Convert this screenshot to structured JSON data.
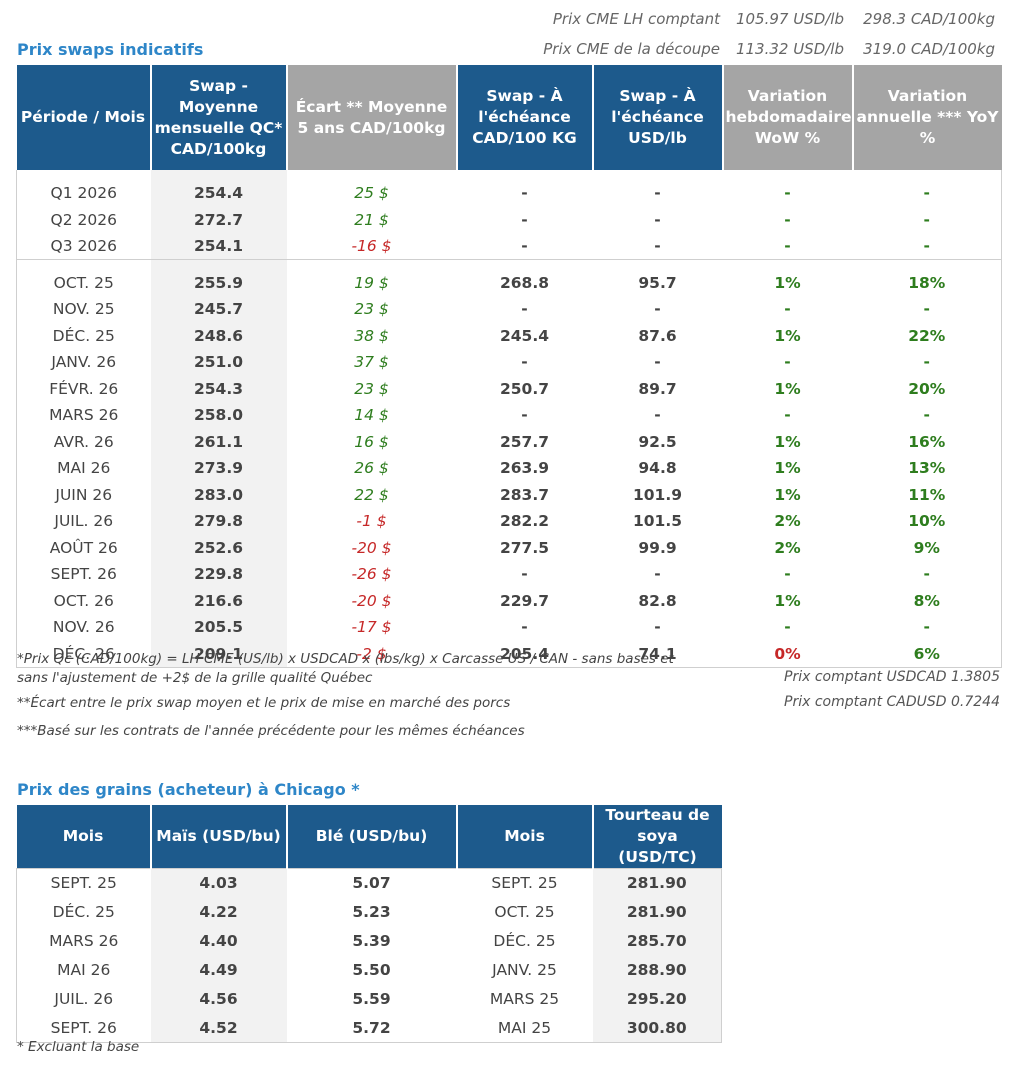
{
  "cme": {
    "lh": {
      "label": "Prix CME LH comptant",
      "usd": "105.97 USD/lb",
      "cad": "298.3 CAD/100kg"
    },
    "decoupe": {
      "label": "Prix CME de la découpe",
      "usd": "113.32 USD/lb",
      "cad": "319.0 CAD/100kg"
    }
  },
  "swaps": {
    "title": "Prix swaps indicatifs",
    "headers": [
      "Période / Mois",
      "Swap - Moyenne mensuelle QC* CAD/100kg",
      "Écart ** Moyenne 5 ans CAD/100kg",
      "Swap - À l'échéance CAD/100 KG",
      "Swap - À l'échéance USD/lb",
      "Variation hebdomadaire WoW %",
      "Variation annuelle *** YoY %"
    ],
    "quarters": [
      {
        "period": "Q1 2026",
        "swap": "254.4",
        "ecart": "25 $",
        "cad": "-",
        "usd": "-",
        "wow": "-",
        "yoy": "-"
      },
      {
        "period": "Q2 2026",
        "swap": "272.7",
        "ecart": "21 $",
        "cad": "-",
        "usd": "-",
        "wow": "-",
        "yoy": "-"
      },
      {
        "period": "Q3 2026",
        "swap": "254.1",
        "ecart": "-16 $",
        "cad": "-",
        "usd": "-",
        "wow": "-",
        "yoy": "-"
      }
    ],
    "months": [
      {
        "period": "OCT. 25",
        "swap": "255.9",
        "ecart": "19 $",
        "cad": "268.8",
        "usd": "95.7",
        "wow": "1%",
        "yoy": "18%"
      },
      {
        "period": "NOV. 25",
        "swap": "245.7",
        "ecart": "23 $",
        "cad": "-",
        "usd": "-",
        "wow": "-",
        "yoy": "-"
      },
      {
        "period": "DÉC. 25",
        "swap": "248.6",
        "ecart": "38 $",
        "cad": "245.4",
        "usd": "87.6",
        "wow": "1%",
        "yoy": "22%"
      },
      {
        "period": "JANV. 26",
        "swap": "251.0",
        "ecart": "37 $",
        "cad": "-",
        "usd": "-",
        "wow": "-",
        "yoy": "-"
      },
      {
        "period": "FÉVR. 26",
        "swap": "254.3",
        "ecart": "23 $",
        "cad": "250.7",
        "usd": "89.7",
        "wow": "1%",
        "yoy": "20%"
      },
      {
        "period": "MARS 26",
        "swap": "258.0",
        "ecart": "14 $",
        "cad": "-",
        "usd": "-",
        "wow": "-",
        "yoy": "-"
      },
      {
        "period": "AVR. 26",
        "swap": "261.1",
        "ecart": "16 $",
        "cad": "257.7",
        "usd": "92.5",
        "wow": "1%",
        "yoy": "16%"
      },
      {
        "period": "MAI 26",
        "swap": "273.9",
        "ecart": "26 $",
        "cad": "263.9",
        "usd": "94.8",
        "wow": "1%",
        "yoy": "13%"
      },
      {
        "period": "JUIN 26",
        "swap": "283.0",
        "ecart": "22 $",
        "cad": "283.7",
        "usd": "101.9",
        "wow": "1%",
        "yoy": "11%"
      },
      {
        "period": "JUIL. 26",
        "swap": "279.8",
        "ecart": "-1 $",
        "cad": "282.2",
        "usd": "101.5",
        "wow": "2%",
        "yoy": "10%"
      },
      {
        "period": "AOÛT 26",
        "swap": "252.6",
        "ecart": "-20 $",
        "cad": "277.5",
        "usd": "99.9",
        "wow": "2%",
        "yoy": "9%"
      },
      {
        "period": "SEPT. 26",
        "swap": "229.8",
        "ecart": "-26 $",
        "cad": "-",
        "usd": "-",
        "wow": "-",
        "yoy": "-"
      },
      {
        "period": "OCT. 26",
        "swap": "216.6",
        "ecart": "-20 $",
        "cad": "229.7",
        "usd": "82.8",
        "wow": "1%",
        "yoy": "8%"
      },
      {
        "period": "NOV. 26",
        "swap": "205.5",
        "ecart": "-17 $",
        "cad": "-",
        "usd": "-",
        "wow": "-",
        "yoy": "-"
      },
      {
        "period": "DÉC. 26",
        "swap": "209.1",
        "ecart": "-2 $",
        "cad": "205.4",
        "usd": "74.1",
        "wow": "0%",
        "yoy": "6%"
      }
    ]
  },
  "notes": {
    "n1a": "*Prix Qc (CAD/100kg) = LH CME (US/lb) x USDCAD x (lbs/kg) x Carcasse US / CAN - sans bases et",
    "n1b": "sans l'ajustement de +2$ de la grille qualité Québec",
    "n2": "**Écart entre le prix swap moyen et le prix de mise en marché des porcs",
    "n3": "***Basé sur les contrats de l'année précédente pour les mêmes échéances",
    "usdcad": "Prix comptant USDCAD 1.3805",
    "cadusd": "Prix comptant CADUSD 0.7244"
  },
  "grains": {
    "title": "Prix des grains (acheteur) à Chicago *",
    "headers": [
      "Mois",
      "Maïs (USD/bu)",
      "Blé (USD/bu)",
      "Mois",
      "Tourteau de soya (USD/TC)"
    ],
    "rows": [
      {
        "m1": "SEPT. 25",
        "mais": "4.03",
        "ble": "5.07",
        "m2": "SEPT. 25",
        "soya": "281.90"
      },
      {
        "m1": "DÉC. 25",
        "mais": "4.22",
        "ble": "5.23",
        "m2": "OCT. 25",
        "soya": "281.90"
      },
      {
        "m1": "MARS 26",
        "mais": "4.40",
        "ble": "5.39",
        "m2": "DÉC. 25",
        "soya": "285.70"
      },
      {
        "m1": "MAI 26",
        "mais": "4.49",
        "ble": "5.50",
        "m2": "JANV. 25",
        "soya": "288.90"
      },
      {
        "m1": "JUIL. 26",
        "mais": "4.56",
        "ble": "5.59",
        "m2": "MARS 25",
        "soya": "295.20"
      },
      {
        "m1": "SEPT. 26",
        "mais": "4.52",
        "ble": "5.72",
        "m2": "MAI 25",
        "soya": "300.80"
      }
    ],
    "footnote": "* Excluant la base"
  },
  "colors": {
    "header_blue": "#1d5a8c",
    "header_gray": "#a5a5a5",
    "positive": "#2e7d1e",
    "negative": "#c62828",
    "title_blue": "#2e86c8"
  }
}
